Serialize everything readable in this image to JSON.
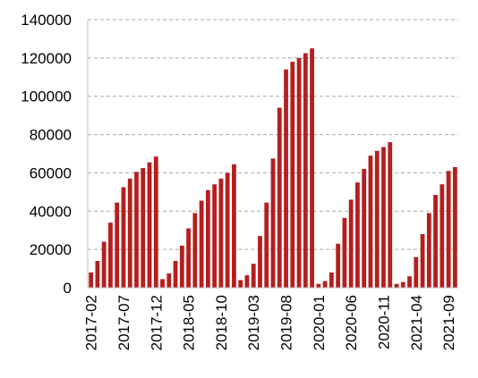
{
  "chart_data": {
    "type": "bar",
    "color": "#b41f1f",
    "grid": true,
    "ylim": [
      0,
      140000
    ],
    "yticks": [
      0,
      20000,
      40000,
      60000,
      80000,
      100000,
      120000,
      140000
    ],
    "categories": [
      "2017-02",
      null,
      null,
      null,
      null,
      "2017-07",
      null,
      null,
      null,
      null,
      "2017-12",
      null,
      null,
      null,
      null,
      "2018-05",
      null,
      null,
      null,
      null,
      "2018-10",
      null,
      null,
      null,
      null,
      "2019-03",
      null,
      null,
      null,
      null,
      "2019-08",
      null,
      null,
      null,
      null,
      "2020-01",
      null,
      null,
      null,
      null,
      "2020-06",
      null,
      null,
      null,
      null,
      "2020-11",
      null,
      null,
      null,
      null,
      "2021-04",
      null,
      null,
      null,
      null,
      "2021-09",
      null
    ],
    "values": [
      8000,
      14000,
      24000,
      34000,
      44500,
      52500,
      57000,
      60500,
      62500,
      65500,
      68500,
      4500,
      7500,
      14000,
      22000,
      31000,
      39000,
      45500,
      51000,
      54000,
      57000,
      60000,
      64500,
      4000,
      6500,
      12500,
      27000,
      44500,
      67500,
      94000,
      114000,
      118000,
      120000,
      122500,
      125000,
      2000,
      3500,
      8000,
      23000,
      36500,
      46000,
      55000,
      62000,
      69000,
      71500,
      73500,
      76000,
      2000,
      3000,
      6000,
      16000,
      28000,
      39000,
      48500,
      54000,
      61000,
      63000
    ]
  }
}
